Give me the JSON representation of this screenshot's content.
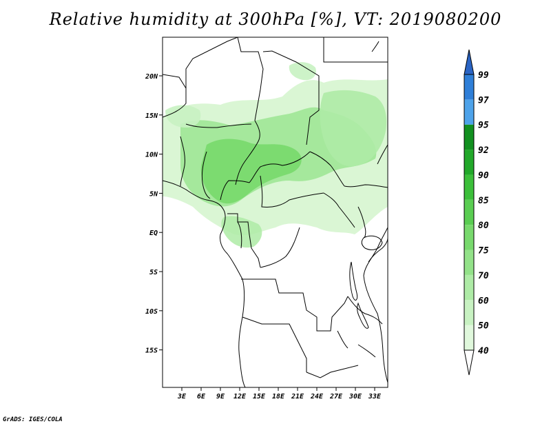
{
  "title": "Relative humidity at 300hPa [%], VT: 2019080200",
  "credit": "GrADS: IGES/COLA",
  "map": {
    "lon_range": [
      0,
      35
    ],
    "lat_range": [
      -20,
      25
    ],
    "y_ticks": [
      "20N",
      "15N",
      "10N",
      "5N",
      "EQ",
      "5S",
      "10S",
      "15S"
    ],
    "x_ticks": [
      "3E",
      "6E",
      "9E",
      "12E",
      "15E",
      "18E",
      "21E",
      "24E",
      "27E",
      "30E",
      "33E"
    ]
  },
  "colorbar": {
    "levels": [
      "40",
      "50",
      "60",
      "70",
      "75",
      "80",
      "85",
      "90",
      "92",
      "95",
      "97",
      "99"
    ],
    "colors": [
      "#f0fcee",
      "#e0f8dc",
      "#c8f2c2",
      "#aeeba6",
      "#93e289",
      "#78d96d",
      "#5acd52",
      "#3cbf3a",
      "#22a82a",
      "#129020",
      "#4ea3ea",
      "#2f7fd8",
      "#2a64c4"
    ],
    "bin_colors": [
      "#f0fcee",
      "#e0f8dc",
      "#c8f2c2",
      "#aeeba6",
      "#93e289",
      "#78d96d",
      "#5acd52",
      "#3cbf3a",
      "#22a82a",
      "#129020",
      "#4ea3ea",
      "#2f7fd8"
    ],
    "lower_arrow_color": "#ffffff",
    "upper_arrow_color": "#2a64c4"
  }
}
